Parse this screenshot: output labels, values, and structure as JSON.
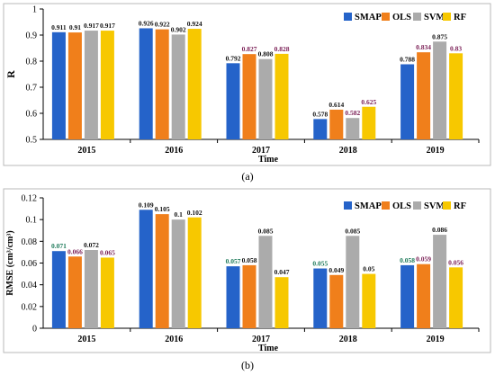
{
  "colors": {
    "SMAP": "#2563C9",
    "OLS": "#F07F1B",
    "SVM": "#ABABAB",
    "RF": "#F7C800",
    "label_dark": "#111111",
    "label_purple": "#7A1E55",
    "label_green": "#1E7A5A"
  },
  "chart_data": [
    {
      "type": "bar",
      "panel_label": "(a)",
      "categories": [
        "2015",
        "2016",
        "2017",
        "2018",
        "2019"
      ],
      "xlabel": "Time",
      "ylabel": "R",
      "ylim": [
        0.5,
        1.0
      ],
      "yticks": [
        "0.5",
        "0.6",
        "0.7",
        "0.8",
        "0.9",
        "1"
      ],
      "legend_position": "top-right",
      "series": [
        {
          "name": "SMAP",
          "values": [
            0.911,
            0.926,
            0.792,
            0.578,
            0.788
          ],
          "labels": [
            "0.911",
            "0.926",
            "0.792",
            "0.578",
            "0.788"
          ]
        },
        {
          "name": "OLS",
          "values": [
            0.91,
            0.922,
            0.827,
            0.614,
            0.834
          ],
          "labels": [
            "0.91",
            "0.922",
            "0.827",
            "0.614",
            "0.834"
          ]
        },
        {
          "name": "SVM",
          "values": [
            0.917,
            0.902,
            0.808,
            0.582,
            0.875
          ],
          "labels": [
            "0.917",
            "0.902",
            "0.808",
            "0.582",
            "0.875"
          ]
        },
        {
          "name": "RF",
          "values": [
            0.917,
            0.924,
            0.828,
            0.625,
            0.83
          ],
          "labels": [
            "0.917",
            "0.924",
            "0.828",
            "0.625",
            "0.83"
          ]
        }
      ]
    },
    {
      "type": "bar",
      "panel_label": "(b)",
      "categories": [
        "2015",
        "2016",
        "2017",
        "2018",
        "2019"
      ],
      "xlabel": "Time",
      "ylabel": "RMSE (cm³/cm³)",
      "ylim": [
        0,
        0.12
      ],
      "yticks": [
        "0",
        "0.02",
        "0.04",
        "0.06",
        "0.08",
        "0.1",
        "0.12"
      ],
      "legend_position": "top-right",
      "series": [
        {
          "name": "SMAP",
          "values": [
            0.071,
            0.109,
            0.057,
            0.055,
            0.058
          ],
          "labels": [
            "0.071",
            "0.109",
            "0.057",
            "0.055",
            "0.058"
          ]
        },
        {
          "name": "OLS",
          "values": [
            0.066,
            0.105,
            0.058,
            0.049,
            0.059
          ],
          "labels": [
            "0.066",
            "0.105",
            "0.058",
            "0.049",
            "0.059"
          ]
        },
        {
          "name": "SVM",
          "values": [
            0.072,
            0.1,
            0.085,
            0.085,
            0.086
          ],
          "labels": [
            "0.072",
            "0.1",
            "0.085",
            "0.085",
            "0.086"
          ]
        },
        {
          "name": "RF",
          "values": [
            0.065,
            0.102,
            0.047,
            0.05,
            0.056
          ],
          "labels": [
            "0.065",
            "0.102",
            "0.047",
            "0.05",
            "0.056"
          ]
        }
      ]
    }
  ]
}
